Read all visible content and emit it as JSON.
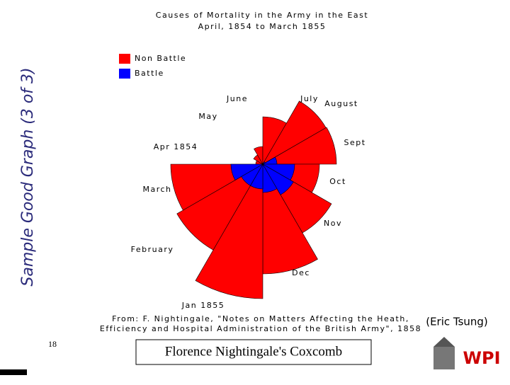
{
  "slide": {
    "side_title": "Sample Good Graph (3 of 3)",
    "page_number": "18",
    "caption": "Florence Nightingale's Coxcomb",
    "credit": "(Eric Tsung)",
    "source_lines": [
      "From: F. Nightingale, \"Notes on Matters Affecting the Heath,",
      "Efficiency and Hospital Administration of the British Army\", 1858"
    ]
  },
  "chart_data": {
    "type": "rose",
    "title_lines": [
      "Causes of Mortality in the Army in the East",
      "April, 1854 to March 1855"
    ],
    "categories": [
      "Apr 1854",
      "May",
      "June",
      "July",
      "August",
      "Sept",
      "Oct",
      "Nov",
      "Dec",
      "Jan 1855",
      "February",
      "March"
    ],
    "series": [
      {
        "name": "Non Battle",
        "color": "#ff0000",
        "values": [
          10,
          15,
          25,
          67,
          103,
          104,
          80,
          112,
          155,
          190,
          140,
          130
        ]
      },
      {
        "name": "Battle",
        "color": "#0000ff",
        "values": [
          0,
          0,
          0,
          0,
          4,
          20,
          45,
          50,
          40,
          35,
          35,
          45
        ]
      }
    ],
    "rlim": [
      0,
      200
    ]
  }
}
